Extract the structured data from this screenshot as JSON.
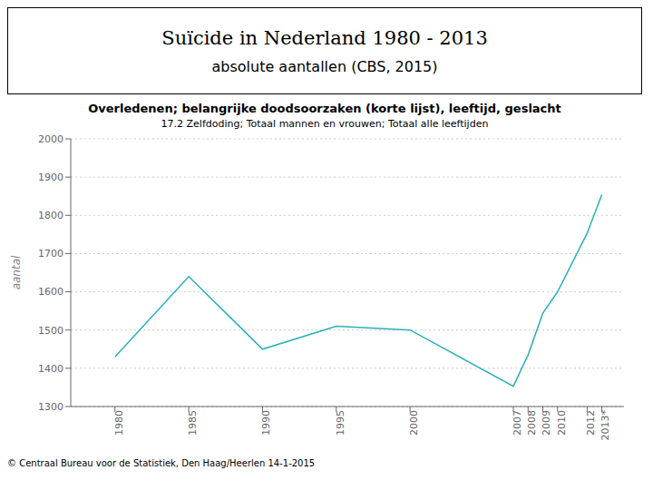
{
  "chart_data": {
    "type": "line",
    "title": "Suïcide in Nederland 1980 - 2013",
    "subtitle": "absolute aantallen (CBS, 2015)",
    "annotations": [
      "Overledenen; belangrijke doodsoorzaken (korte lijst), leeftijd, geslacht",
      "17.2 Zelfdoding; Totaal mannen en vrouwen; Totaal alle leeftijden",
      "© Centraal Bureau voor de Statistiek, Den Haag/Heerlen 14-1-2015"
    ],
    "ylabel": "aantal",
    "x": [
      1980,
      1985,
      1990,
      1995,
      2000,
      2007,
      2008,
      2009,
      2010,
      2012,
      2013
    ],
    "values": [
      1430,
      1640,
      1450,
      1510,
      1500,
      1353,
      1435,
      1544,
      1600,
      1753,
      1854
    ],
    "color": "#2ab0b8",
    "xlim": [
      1977,
      2014.5
    ],
    "xticks": [
      1980,
      1985,
      1990,
      1995,
      2000,
      2007,
      2008,
      2009,
      2010,
      2012,
      {
        "value": 2013,
        "label": "2013*"
      }
    ],
    "ylim": [
      1300,
      2000
    ],
    "yticks": [
      1300,
      1400,
      1500,
      1600,
      1700,
      1800,
      1900,
      2000
    ],
    "grid": true
  }
}
